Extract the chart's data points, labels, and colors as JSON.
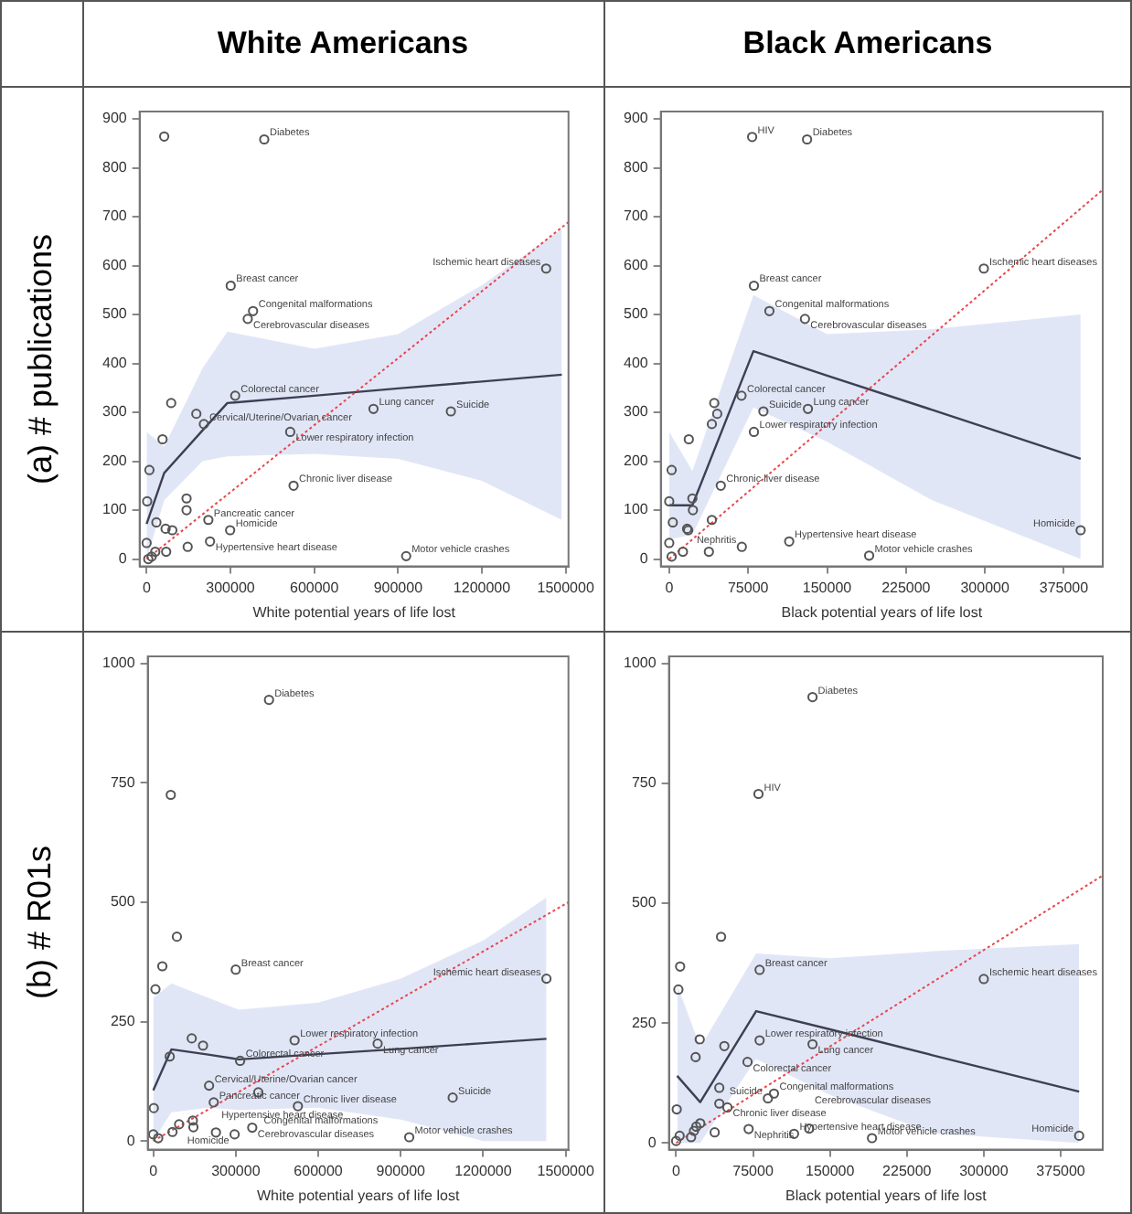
{
  "chart_data": [
    {
      "type": "scatter",
      "title": "White Americans",
      "ylabel": "(a) # publications",
      "xlabel": "White potential years of life lost",
      "xlim": [
        -25000,
        1510000
      ],
      "ylim": [
        -15,
        915
      ],
      "xticks": [
        0,
        300000,
        600000,
        900000,
        1200000,
        1500000
      ],
      "yticks": [
        0,
        100,
        200,
        300,
        400,
        500,
        600,
        700,
        800,
        900
      ],
      "grid": false,
      "legend": false,
      "series": [
        {
          "type": "line",
          "color": "#e8474c",
          "line_style": "dotted",
          "x": [
            0,
            1510000
          ],
          "values": [
            0,
            689
          ]
        },
        {
          "type": "line",
          "color": "#3d4052",
          "x": [
            0,
            63000,
            200000,
            289000,
            600000,
            900000,
            1200000,
            1486000
          ],
          "values": [
            72,
            176,
            263,
            319,
            334,
            349,
            363,
            377
          ],
          "lower": [
            0,
            120,
            200,
            210,
            215,
            205,
            160,
            80
          ],
          "upper": [
            260,
            230,
            390,
            465,
            430,
            460,
            560,
            675
          ]
        },
        {
          "type": "scatter",
          "color": "#555555",
          "marker": "circle",
          "x": [
            63000,
            421000,
            301000,
            381000,
            362000,
            1430000,
            317000,
            88000,
            178000,
            205000,
            514000,
            812000,
            1089000,
            57000,
            10000,
            2000,
            526000,
            143000,
            143000,
            35000,
            221000,
            299000,
            68000,
            92000,
            0,
            147000,
            227000,
            70000,
            31000,
            18000,
            6000,
            929000
          ],
          "values": [
            864,
            858,
            559,
            507,
            491,
            594,
            334,
            319,
            297,
            276,
            260,
            307,
            302,
            245,
            182,
            118,
            150,
            124,
            100,
            75,
            80,
            59,
            62,
            59,
            33,
            25,
            36,
            15,
            15,
            5,
            0,
            6
          ]
        }
      ],
      "annotations": [
        {
          "text": "Diabetes",
          "x": 421000,
          "y": 858
        },
        {
          "text": "Breast cancer",
          "x": 301000,
          "y": 559
        },
        {
          "text": "Congenital malformations",
          "x": 381000,
          "y": 507
        },
        {
          "text": "Cerebrovascular diseases",
          "x": 362000,
          "y": 491
        },
        {
          "text": "Ischemic heart diseases",
          "x": 1430000,
          "y": 594
        },
        {
          "text": "Colorectal cancer",
          "x": 317000,
          "y": 334
        },
        {
          "text": "Cervical/Uterine/Ovarian cancer",
          "x": 205000,
          "y": 276
        },
        {
          "text": "Lower respiratory infection",
          "x": 514000,
          "y": 260
        },
        {
          "text": "Lung cancer",
          "x": 812000,
          "y": 307
        },
        {
          "text": "Suicide",
          "x": 1089000,
          "y": 302
        },
        {
          "text": "Chronic liver disease",
          "x": 526000,
          "y": 150
        },
        {
          "text": "Pancreatic cancer",
          "x": 221000,
          "y": 80
        },
        {
          "text": "Homicide",
          "x": 299000,
          "y": 59
        },
        {
          "text": "Hypertensive heart disease",
          "x": 227000,
          "y": 36
        },
        {
          "text": "Motor vehicle crashes",
          "x": 929000,
          "y": 6
        }
      ]
    },
    {
      "type": "scatter",
      "title": "Black Americans",
      "xlabel": "Black potential years of life lost",
      "xlim": [
        -8000,
        412000
      ],
      "ylim": [
        -15,
        915
      ],
      "xticks": [
        0,
        75000,
        150000,
        225000,
        300000,
        375000
      ],
      "yticks": [
        0,
        100,
        200,
        300,
        400,
        500,
        600,
        700,
        800,
        900
      ],
      "grid": false,
      "legend": false,
      "series": [
        {
          "type": "line",
          "color": "#e8474c",
          "line_style": "dotted",
          "x": [
            0,
            412000
          ],
          "values": [
            0,
            755
          ]
        },
        {
          "type": "line",
          "color": "#3d4052",
          "x": [
            0,
            22000,
            80000,
            150000,
            250000,
            391000
          ],
          "values": [
            110,
            110,
            425,
            375,
            305,
            205
          ],
          "lower": [
            40,
            50,
            310,
            240,
            120,
            0
          ],
          "upper": [
            260,
            180,
            540,
            460,
            470,
            500
          ]
        },
        {
          "type": "scatter",
          "color": "#555555",
          "marker": "circle",
          "x": [
            78800,
            131000,
            80500,
            95200,
            129000,
            299000,
            68700,
            89500,
            131800,
            80500,
            42800,
            45600,
            40500,
            18600,
            2300,
            0,
            22000,
            22500,
            3400,
            49000,
            40500,
            17000,
            18000,
            0,
            37700,
            13000,
            2300,
            69000,
            114000,
            190000,
            391000
          ],
          "values": [
            863,
            858,
            559,
            507,
            491,
            594,
            334,
            302,
            307,
            260,
            319,
            297,
            276,
            245,
            182,
            118,
            124,
            100,
            75,
            150,
            80,
            62,
            59,
            33,
            15,
            15,
            5,
            25,
            36,
            7,
            59
          ]
        }
      ],
      "annotations": [
        {
          "text": "HIV",
          "x": 78800,
          "y": 863
        },
        {
          "text": "Diabetes",
          "x": 131000,
          "y": 858
        },
        {
          "text": "Breast cancer",
          "x": 80500,
          "y": 559
        },
        {
          "text": "Congenital malformations",
          "x": 95200,
          "y": 507
        },
        {
          "text": "Cerebrovascular diseases",
          "x": 129000,
          "y": 491
        },
        {
          "text": "Ischemic heart diseases",
          "x": 299000,
          "y": 594
        },
        {
          "text": "Colorectal cancer",
          "x": 68700,
          "y": 334
        },
        {
          "text": "Suicide",
          "x": 89500,
          "y": 302
        },
        {
          "text": "Lung cancer",
          "x": 131800,
          "y": 307
        },
        {
          "text": "Lower respiratory infection",
          "x": 80500,
          "y": 260
        },
        {
          "text": "Chronic liver disease",
          "x": 49000,
          "y": 150
        },
        {
          "text": "Nephritis",
          "x": 69000,
          "y": 25
        },
        {
          "text": "Hypertensive heart disease",
          "x": 114000,
          "y": 36
        },
        {
          "text": "Motor vehicle crashes",
          "x": 190000,
          "y": 7
        },
        {
          "text": "Homicide",
          "x": 391000,
          "y": 59
        }
      ]
    },
    {
      "type": "scatter",
      "ylabel": "(b) # R01s",
      "xlabel": "White potential years of life lost",
      "xlim": [
        -20000,
        1510000
      ],
      "ylim": [
        -18,
        1015
      ],
      "xticks": [
        0,
        300000,
        600000,
        900000,
        1200000,
        1500000
      ],
      "yticks": [
        0,
        250,
        500,
        750,
        1000
      ],
      "grid": false,
      "legend": false,
      "series": [
        {
          "type": "line",
          "color": "#e8474c",
          "line_style": "dotted",
          "x": [
            0,
            1510000
          ],
          "values": [
            0,
            500
          ]
        },
        {
          "type": "line",
          "color": "#3d4052",
          "x": [
            0,
            66000,
            200000,
            312000,
            600000,
            900000,
            1200000,
            1430000
          ],
          "values": [
            106,
            192,
            181,
            171,
            182,
            193,
            205,
            214
          ],
          "lower": [
            0,
            60,
            70,
            65,
            70,
            45,
            0,
            0
          ],
          "upper": [
            300,
            330,
            300,
            275,
            290,
            340,
            420,
            510
          ]
        },
        {
          "type": "scatter",
          "color": "#555555",
          "marker": "circle",
          "x": [
            421000,
            63700,
            86000,
            33000,
            8000,
            300000,
            1430000,
            140000,
            181000,
            514000,
            816000,
            316000,
            60000,
            203000,
            382000,
            526000,
            1089000,
            220000,
            2000,
            360000,
            94000,
            144000,
            146000,
            70000,
            0,
            18000,
            228000,
            296000,
            931000
          ],
          "values": [
            924,
            725,
            428,
            366,
            318,
            359,
            340,
            215,
            200,
            211,
            204,
            168,
            177,
            116,
            102,
            73,
            91,
            81,
            69,
            28,
            35,
            43,
            29,
            19,
            14,
            6,
            18,
            14,
            8
          ]
        }
      ],
      "annotations": [
        {
          "text": "Diabetes",
          "x": 421000,
          "y": 924
        },
        {
          "text": "Breast cancer",
          "x": 300000,
          "y": 359
        },
        {
          "text": "Ischemic heart diseases",
          "x": 1430000,
          "y": 340
        },
        {
          "text": "Lower respiratory infection",
          "x": 514000,
          "y": 211
        },
        {
          "text": "Lung cancer",
          "x": 816000,
          "y": 204
        },
        {
          "text": "Colorectal cancer",
          "x": 316000,
          "y": 168
        },
        {
          "text": "Cervical/Uterine/Ovarian cancer",
          "x": 203000,
          "y": 116
        },
        {
          "text": "Congenital malformations",
          "x": 382000,
          "y": 102
        },
        {
          "text": "Chronic liver disease",
          "x": 526000,
          "y": 73
        },
        {
          "text": "Suicide",
          "x": 1089000,
          "y": 91
        },
        {
          "text": "Pancreatic cancer",
          "x": 220000,
          "y": 81
        },
        {
          "text": "Cerebrovascular diseases",
          "x": 360000,
          "y": 28
        },
        {
          "text": "Hypertensive heart disease",
          "x": 228000,
          "y": 18
        },
        {
          "text": "Homicide",
          "x": 296000,
          "y": 14
        },
        {
          "text": "Motor vehicle crashes",
          "x": 931000,
          "y": 8
        }
      ]
    },
    {
      "type": "scatter",
      "xlabel": "Black potential years of life lost",
      "xlim": [
        -7000,
        416000
      ],
      "ylim": [
        -14,
        1015
      ],
      "xticks": [
        0,
        75000,
        150000,
        225000,
        300000,
        375000
      ],
      "yticks": [
        0,
        250,
        500,
        750,
        1000
      ],
      "grid": false,
      "legend": false,
      "series": [
        {
          "type": "line",
          "color": "#e8474c",
          "line_style": "dotted",
          "x": [
            0,
            416000
          ],
          "values": [
            0,
            558
          ]
        },
        {
          "type": "line",
          "color": "#3d4052",
          "x": [
            1000,
            23500,
            78000,
            150000,
            250000,
            393000
          ],
          "values": [
            140,
            85,
            275,
            237,
            183,
            107
          ],
          "lower": [
            0,
            0,
            175,
            100,
            20,
            0
          ],
          "upper": [
            330,
            200,
            395,
            385,
            400,
            415
          ]
        },
        {
          "type": "scatter",
          "color": "#555555",
          "marker": "circle",
          "x": [
            133000,
            80300,
            43800,
            3900,
            2200,
            81400,
            300000,
            23000,
            47000,
            81400,
            19000,
            133000,
            69600,
            42100,
            95400,
            89500,
            42100,
            50000,
            600,
            70700,
            37600,
            129700,
            115000,
            23500,
            19600,
            17400,
            14600,
            3400,
            0,
            191000,
            393000
          ],
          "values": [
            930,
            728,
            430,
            368,
            320,
            361,
            342,
            216,
            202,
            214,
            179,
            206,
            169,
            115,
            103,
            93,
            82,
            74,
            70,
            29,
            22,
            30,
            19,
            41,
            34,
            25,
            12,
            15,
            4,
            10,
            15
          ]
        }
      ],
      "annotations": [
        {
          "text": "Diabetes",
          "x": 133000,
          "y": 930
        },
        {
          "text": "HIV",
          "x": 80300,
          "y": 728
        },
        {
          "text": "Breast cancer",
          "x": 81400,
          "y": 361
        },
        {
          "text": "Ischemic heart diseases",
          "x": 300000,
          "y": 342
        },
        {
          "text": "Lower respiratory infection",
          "x": 81400,
          "y": 214
        },
        {
          "text": "Lung cancer",
          "x": 133000,
          "y": 206
        },
        {
          "text": "Colorectal cancer",
          "x": 69600,
          "y": 169
        },
        {
          "text": "Congenital malformations",
          "x": 95400,
          "y": 103
        },
        {
          "text": "Suicide",
          "x": 89500,
          "y": 93
        },
        {
          "text": "Chronic liver disease",
          "x": 50000,
          "y": 74
        },
        {
          "text": "Nephritis",
          "x": 70700,
          "y": 29
        },
        {
          "text": "Cerebrovascular diseases",
          "x": 129700,
          "y": 30
        },
        {
          "text": "Hypertensive heart disease",
          "x": 115000,
          "y": 19
        },
        {
          "text": "Motor vehicle crashes",
          "x": 191000,
          "y": 10
        },
        {
          "text": "Homicide",
          "x": 393000,
          "y": 15
        }
      ]
    }
  ]
}
